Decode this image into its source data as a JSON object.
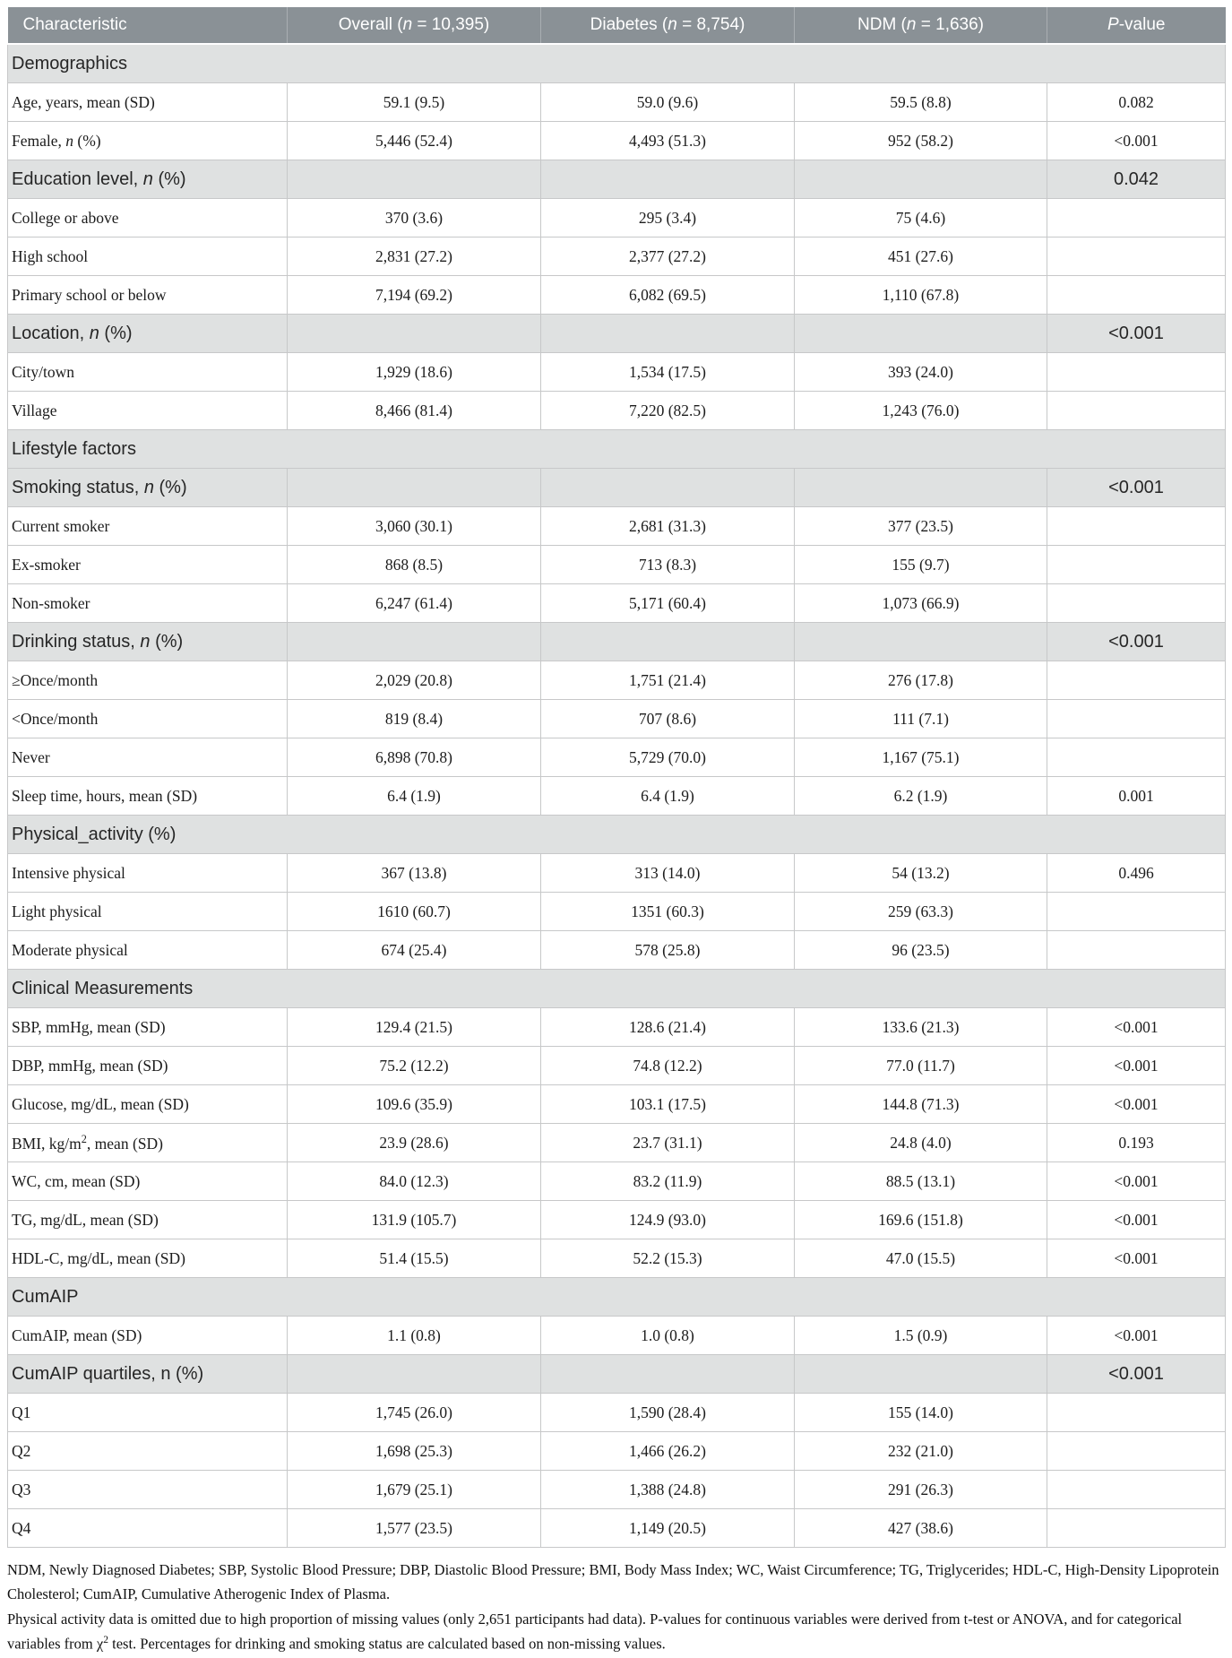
{
  "table": {
    "columns": [
      "Characteristic",
      "Overall (*n* = 10,395)",
      "Diabetes (*n* = 8,754)",
      "NDM (*n* = 1,636)",
      "*P*-value"
    ],
    "rows": [
      {
        "type": "section-full",
        "label": "Demographics"
      },
      {
        "type": "data",
        "label": "Age, years, mean (SD)",
        "overall": "59.1 (9.5)",
        "diabetes": "59.0 (9.6)",
        "ndm": "59.5 (8.8)",
        "p": "0.082"
      },
      {
        "type": "data",
        "label": "Female, *n* (%)",
        "overall": "5,446 (52.4)",
        "diabetes": "4,493 (51.3)",
        "ndm": "952 (58.2)",
        "p": "<0.001"
      },
      {
        "type": "section",
        "label": "Education level, *n* (%)",
        "p": "0.042"
      },
      {
        "type": "data",
        "label": "College or above",
        "overall": "370 (3.6)",
        "diabetes": "295 (3.4)",
        "ndm": "75 (4.6)",
        "p": ""
      },
      {
        "type": "data",
        "label": "High school",
        "overall": "2,831 (27.2)",
        "diabetes": "2,377 (27.2)",
        "ndm": "451 (27.6)",
        "p": ""
      },
      {
        "type": "data",
        "label": "Primary school or below",
        "overall": "7,194 (69.2)",
        "diabetes": "6,082 (69.5)",
        "ndm": "1,110 (67.8)",
        "p": ""
      },
      {
        "type": "section",
        "label": "Location, *n* (%)",
        "p": "<0.001"
      },
      {
        "type": "data",
        "label": "City/town",
        "overall": "1,929 (18.6)",
        "diabetes": "1,534 (17.5)",
        "ndm": "393 (24.0)",
        "p": ""
      },
      {
        "type": "data",
        "label": "Village",
        "overall": "8,466 (81.4)",
        "diabetes": "7,220 (82.5)",
        "ndm": "1,243 (76.0)",
        "p": ""
      },
      {
        "type": "section-full",
        "label": "Lifestyle factors"
      },
      {
        "type": "section",
        "label": "Smoking status, *n* (%)",
        "p": "<0.001"
      },
      {
        "type": "data",
        "label": "Current smoker",
        "overall": "3,060 (30.1)",
        "diabetes": "2,681 (31.3)",
        "ndm": "377 (23.5)",
        "p": ""
      },
      {
        "type": "data",
        "label": "Ex-smoker",
        "overall": "868 (8.5)",
        "diabetes": "713 (8.3)",
        "ndm": "155 (9.7)",
        "p": ""
      },
      {
        "type": "data",
        "label": "Non-smoker",
        "overall": "6,247 (61.4)",
        "diabetes": "5,171 (60.4)",
        "ndm": "1,073 (66.9)",
        "p": ""
      },
      {
        "type": "section",
        "label": "Drinking status, *n* (%)",
        "p": "<0.001"
      },
      {
        "type": "data",
        "label": "≥Once/month",
        "overall": "2,029 (20.8)",
        "diabetes": "1,751 (21.4)",
        "ndm": "276 (17.8)",
        "p": ""
      },
      {
        "type": "data",
        "label": "<Once/month",
        "overall": "819 (8.4)",
        "diabetes": "707 (8.6)",
        "ndm": "111 (7.1)",
        "p": ""
      },
      {
        "type": "data",
        "label": "Never",
        "overall": "6,898 (70.8)",
        "diabetes": "5,729 (70.0)",
        "ndm": "1,167 (75.1)",
        "p": ""
      },
      {
        "type": "data",
        "label": "Sleep time, hours, mean (SD)",
        "overall": "6.4 (1.9)",
        "diabetes": "6.4 (1.9)",
        "ndm": "6.2 (1.9)",
        "p": "0.001"
      },
      {
        "type": "section-full",
        "label": "Physical_activity (%)"
      },
      {
        "type": "data",
        "label": "Intensive physical",
        "overall": "367 (13.8)",
        "diabetes": "313 (14.0)",
        "ndm": "54 (13.2)",
        "p": "0.496"
      },
      {
        "type": "data",
        "label": "Light physical",
        "overall": "1610 (60.7)",
        "diabetes": "1351 (60.3)",
        "ndm": "259 (63.3)",
        "p": ""
      },
      {
        "type": "data",
        "label": "Moderate physical",
        "overall": "674 (25.4)",
        "diabetes": "578 (25.8)",
        "ndm": "96 (23.5)",
        "p": ""
      },
      {
        "type": "section-full",
        "label": "Clinical Measurements"
      },
      {
        "type": "data",
        "label": "SBP, mmHg, mean (SD)",
        "overall": "129.4 (21.5)",
        "diabetes": "128.6 (21.4)",
        "ndm": "133.6 (21.3)",
        "p": "<0.001"
      },
      {
        "type": "data",
        "label": "DBP, mmHg, mean (SD)",
        "overall": "75.2 (12.2)",
        "diabetes": "74.8 (12.2)",
        "ndm": "77.0 (11.7)",
        "p": "<0.001"
      },
      {
        "type": "data",
        "label": "Glucose, mg/dL, mean (SD)",
        "overall": "109.6 (35.9)",
        "diabetes": "103.1 (17.5)",
        "ndm": "144.8 (71.3)",
        "p": "<0.001"
      },
      {
        "type": "data",
        "label": "BMI, kg/m^2^, mean (SD)",
        "overall": "23.9 (28.6)",
        "diabetes": "23.7 (31.1)",
        "ndm": "24.8 (4.0)",
        "p": "0.193"
      },
      {
        "type": "data",
        "label": "WC, cm, mean (SD)",
        "overall": "84.0 (12.3)",
        "diabetes": "83.2 (11.9)",
        "ndm": "88.5 (13.1)",
        "p": "<0.001"
      },
      {
        "type": "data",
        "label": "TG, mg/dL, mean (SD)",
        "overall": "131.9 (105.7)",
        "diabetes": "124.9 (93.0)",
        "ndm": "169.6 (151.8)",
        "p": "<0.001"
      },
      {
        "type": "data",
        "label": "HDL-C, mg/dL, mean (SD)",
        "overall": "51.4 (15.5)",
        "diabetes": "52.2 (15.3)",
        "ndm": "47.0 (15.5)",
        "p": "<0.001"
      },
      {
        "type": "section-full",
        "label": "CumAIP"
      },
      {
        "type": "data",
        "label": "CumAIP, mean (SD)",
        "overall": "1.1 (0.8)",
        "diabetes": "1.0 (0.8)",
        "ndm": "1.5 (0.9)",
        "p": "<0.001"
      },
      {
        "type": "section",
        "label": "CumAIP quartiles, n (%)",
        "p": "<0.001"
      },
      {
        "type": "data",
        "label": "Q1",
        "overall": "1,745 (26.0)",
        "diabetes": "1,590 (28.4)",
        "ndm": "155 (14.0)",
        "p": ""
      },
      {
        "type": "data",
        "label": "Q2",
        "overall": "1,698 (25.3)",
        "diabetes": "1,466 (26.2)",
        "ndm": "232 (21.0)",
        "p": ""
      },
      {
        "type": "data",
        "label": "Q3",
        "overall": "1,679 (25.1)",
        "diabetes": "1,388 (24.8)",
        "ndm": "291 (26.3)",
        "p": ""
      },
      {
        "type": "data",
        "label": "Q4",
        "overall": "1,577 (23.5)",
        "diabetes": "1,149 (20.5)",
        "ndm": "427 (38.6)",
        "p": ""
      }
    ]
  },
  "footnotes": [
    "NDM, Newly Diagnosed Diabetes; SBP, Systolic Blood Pressure; DBP, Diastolic Blood Pressure; BMI, Body Mass Index; WC, Waist Circumference; TG, Triglycerides; HDL-C, High-Density Lipoprotein Cholesterol; CumAIP, Cumulative Atherogenic Index of Plasma.",
    "Physical activity data is omitted due to high proportion of missing values (only 2,651 participants had data). P-values for continuous variables were derived from t-test or ANOVA, and for categorical variables from χ^2^ test. Percentages for drinking and smoking status are calculated based on non-missing values."
  ],
  "colors": {
    "header_bg": "#8a9196",
    "header_text": "#ffffff",
    "section_bg": "#dfe1e1",
    "border": "#c7c8c9",
    "body_text": "#1c1c1c"
  }
}
